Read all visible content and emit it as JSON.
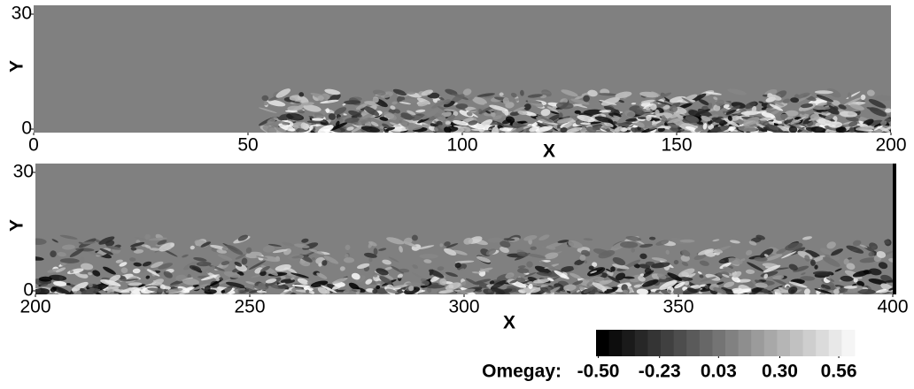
{
  "chart_data": [
    {
      "type": "contour",
      "xlabel": "X",
      "ylabel": "Y",
      "xlim": [
        0,
        200
      ],
      "ylim": [
        0,
        30
      ],
      "xticks": [
        0,
        50,
        100,
        150,
        200
      ],
      "yticks": [
        0,
        30
      ]
    },
    {
      "type": "contour",
      "xlabel": "X",
      "ylabel": "Y",
      "xlim": [
        200,
        400
      ],
      "ylim": [
        0,
        30
      ],
      "xticks": [
        200,
        250,
        300,
        350,
        400
      ],
      "yticks": [
        0,
        30
      ]
    }
  ],
  "colorbar": {
    "label": "Omegay:",
    "lim": [
      -0.51,
      0.63
    ],
    "ticks": [
      {
        "value": -0.5,
        "label": "-0.50"
      },
      {
        "value": -0.23,
        "label": "-0.23"
      },
      {
        "value": 0.03,
        "label": "0.03"
      },
      {
        "value": 0.3,
        "label": "0.30"
      },
      {
        "value": 0.56,
        "label": "0.56"
      }
    ]
  }
}
